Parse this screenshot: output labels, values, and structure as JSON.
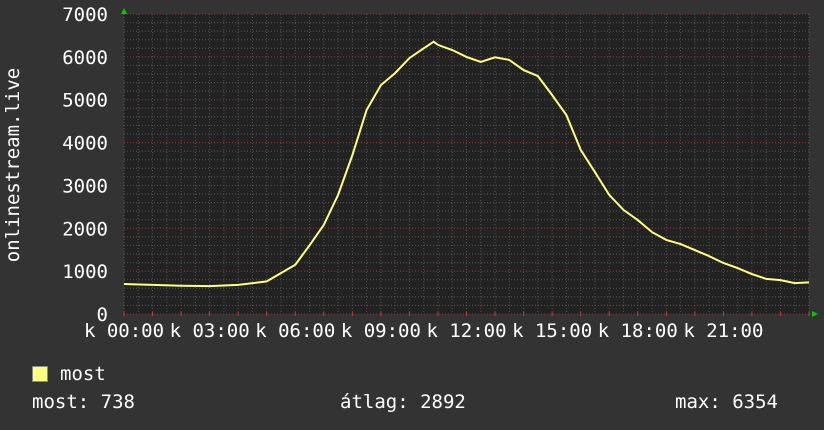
{
  "chart_data": {
    "type": "line",
    "ylabel": "onlinestream.live",
    "xlabel": "",
    "ylim": [
      0,
      7000
    ],
    "yticks": [
      "0",
      "1000",
      "2000",
      "3000",
      "4000",
      "5000",
      "6000",
      "7000"
    ],
    "xlim_hours": [
      0,
      24
    ],
    "xtick_labels": [
      "k 00:00",
      "k 03:00",
      "k 06:00",
      "k 09:00",
      "k 12:00",
      "k 15:00",
      "k 18:00",
      "k 21:00"
    ],
    "grid": true,
    "legend_position": "bottom-left",
    "colors": {
      "background": "#333333",
      "plot": "#222222",
      "line": "#ffff80",
      "major_grid": "#8b3a3a",
      "minor_grid": "#555555",
      "arrow": "#00cc00"
    },
    "series": [
      {
        "name": "most",
        "x_hours": [
          0,
          1,
          2,
          3,
          4,
          5,
          6,
          6.5,
          7,
          7.5,
          8,
          8.5,
          9,
          9.5,
          10,
          10.5,
          10.85,
          11,
          11.5,
          12,
          12.5,
          13,
          13.5,
          14,
          14.5,
          15,
          15.5,
          16,
          16.5,
          17,
          17.5,
          18,
          18.5,
          19,
          19.5,
          20,
          20.5,
          21,
          21.5,
          22,
          22.5,
          23,
          23.5,
          24
        ],
        "values": [
          700,
          680,
          660,
          650,
          680,
          760,
          1150,
          1600,
          2080,
          2780,
          3700,
          4760,
          5340,
          5620,
          5970,
          6200,
          6354,
          6280,
          6160,
          6000,
          5880,
          5990,
          5930,
          5690,
          5550,
          5110,
          4640,
          3830,
          3310,
          2780,
          2430,
          2190,
          1910,
          1730,
          1630,
          1490,
          1350,
          1190,
          1070,
          930,
          820,
          790,
          720,
          738
        ]
      }
    ]
  },
  "legend": {
    "label": "most"
  },
  "stats": {
    "current": "most: 738",
    "average": "átlag: 2892",
    "max": "max: 6354"
  }
}
